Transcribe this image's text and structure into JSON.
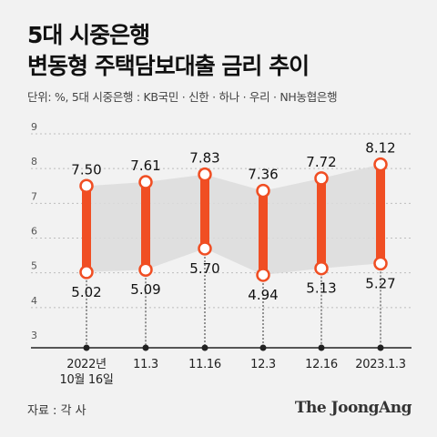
{
  "header": {
    "title_line1": "5대 시중은행",
    "title_line2": "변동형 주택담보대출 금리 추이",
    "unit": "단위: %, 5대 시중은행 : KB국민 · 신한 · 하나 · 우리 · NH농협은행"
  },
  "footer": {
    "source": "자료 : 각 사",
    "logo_text": "The JoongAng"
  },
  "chart_data": {
    "type": "range-bar",
    "categories": [
      [
        "2022년",
        "10월 16일"
      ],
      [
        "11.3"
      ],
      [
        "11.16"
      ],
      [
        "12.3"
      ],
      [
        "12.16"
      ],
      [
        "2023.1.3"
      ]
    ],
    "series": [
      {
        "name": "",
        "values": [
          7.5,
          7.61,
          7.83,
          7.36,
          7.72,
          8.12
        ]
      },
      {
        "name": "",
        "values": [
          5.02,
          5.09,
          5.7,
          4.94,
          5.13,
          5.27
        ]
      }
    ],
    "high_labels": [
      "7.50",
      "7.61",
      "7.83",
      "7.36",
      "7.72",
      "8.12"
    ],
    "low_labels": [
      "5.02",
      "5.09",
      "5.70",
      "4.94",
      "5.13",
      "5.27"
    ],
    "y_ticks": [
      "9",
      "8",
      "7",
      "6",
      "5",
      "4",
      "3"
    ],
    "ylim": [
      3,
      9
    ],
    "grid": true,
    "colors": {
      "bar": "#f04e23",
      "band": "#dcdcdc",
      "grid": "#bdbdbd",
      "axis": "#222222"
    }
  }
}
